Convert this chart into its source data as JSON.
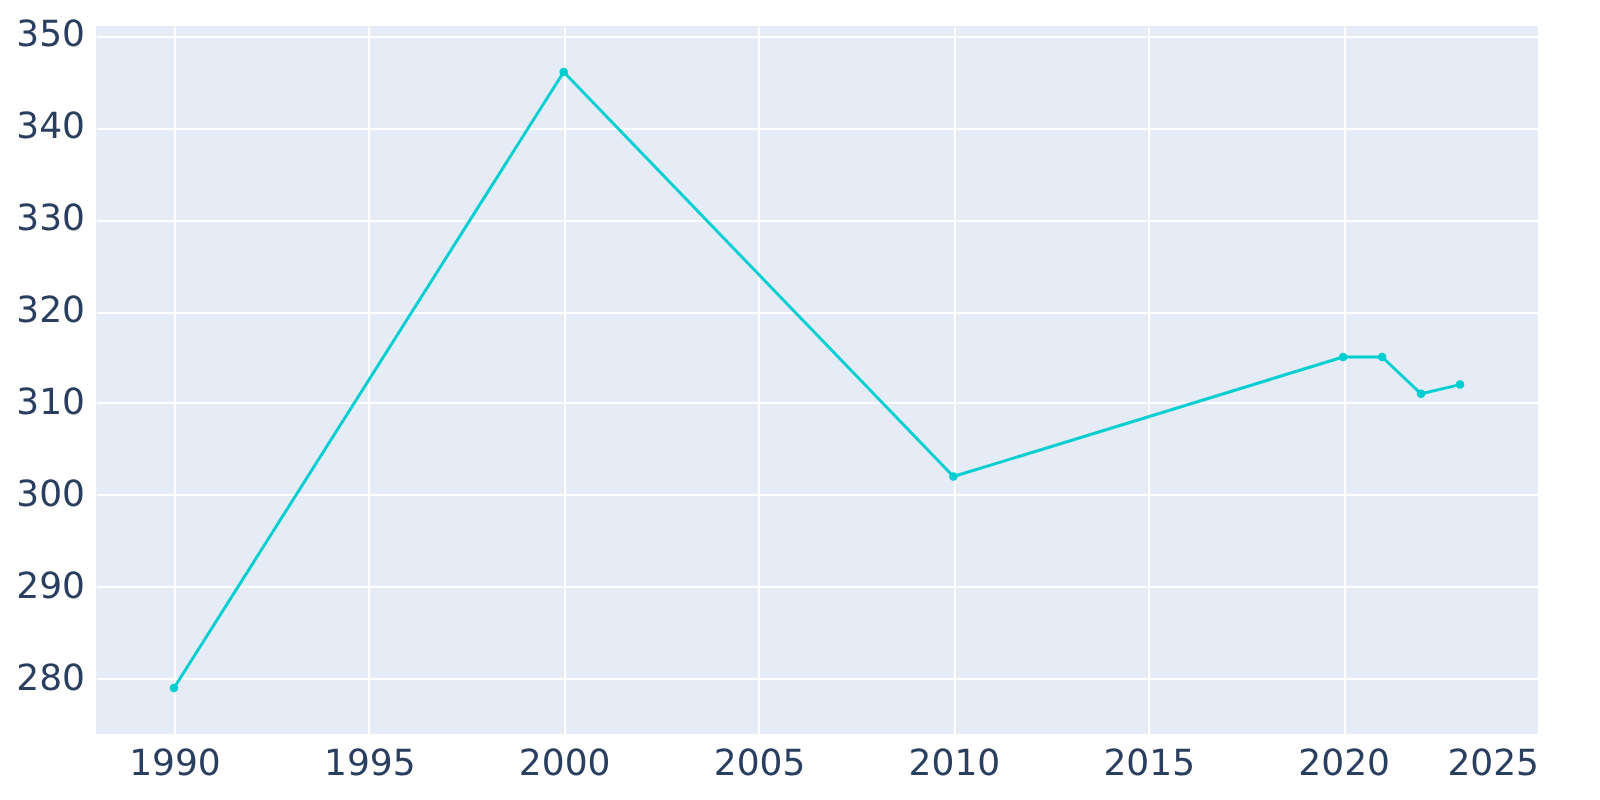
{
  "chart_data": {
    "type": "line",
    "x": [
      1990,
      2000,
      2010,
      2020,
      2021,
      2022,
      2023
    ],
    "series": [
      {
        "color": "#00ced1",
        "values": [
          279,
          346,
          302,
          315,
          315,
          311,
          312
        ]
      }
    ],
    "xlim": [
      1988,
      2025
    ],
    "xticks": [
      1990,
      1995,
      2000,
      2005,
      2010,
      2015,
      2020,
      2025
    ],
    "ylim": [
      274,
      351
    ],
    "yticks": [
      280,
      290,
      300,
      310,
      320,
      330,
      340,
      350
    ],
    "grid": true,
    "marker": "circle",
    "line_style": "solid",
    "legend": false
  }
}
